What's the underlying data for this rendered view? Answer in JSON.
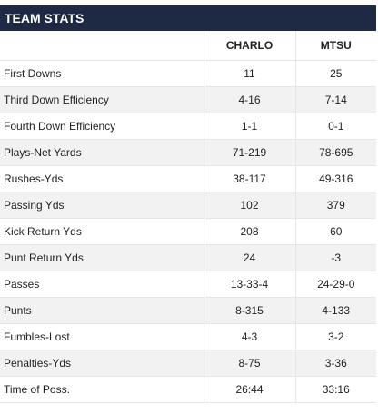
{
  "title": "TEAM STATS",
  "columns": [
    "",
    "CHARLO",
    "MTSU"
  ],
  "rows": [
    {
      "stat": "First Downs",
      "charlo": "11",
      "mtsu": "25"
    },
    {
      "stat": "Third Down Efficiency",
      "charlo": "4-16",
      "mtsu": "7-14"
    },
    {
      "stat": "Fourth Down Efficiency",
      "charlo": "1-1",
      "mtsu": "0-1"
    },
    {
      "stat": "Plays-Net Yards",
      "charlo": "71-219",
      "mtsu": "78-695"
    },
    {
      "stat": "Rushes-Yds",
      "charlo": "38-117",
      "mtsu": "49-316"
    },
    {
      "stat": "Passing Yds",
      "charlo": "102",
      "mtsu": "379"
    },
    {
      "stat": "Kick Return Yds",
      "charlo": "208",
      "mtsu": "60"
    },
    {
      "stat": "Punt Return Yds",
      "charlo": "24",
      "mtsu": "-3"
    },
    {
      "stat": "Passes",
      "charlo": "13-33-4",
      "mtsu": "24-29-0"
    },
    {
      "stat": "Punts",
      "charlo": "8-315",
      "mtsu": "4-133"
    },
    {
      "stat": "Fumbles-Lost",
      "charlo": "4-3",
      "mtsu": "3-2"
    },
    {
      "stat": "Penalties-Yds",
      "charlo": "8-75",
      "mtsu": "3-36"
    },
    {
      "stat": "Time of Poss.",
      "charlo": "26:44",
      "mtsu": "33:16"
    }
  ],
  "colors": {
    "title_bg": "#1e2a44",
    "alt_row": "#f2f2f2"
  }
}
